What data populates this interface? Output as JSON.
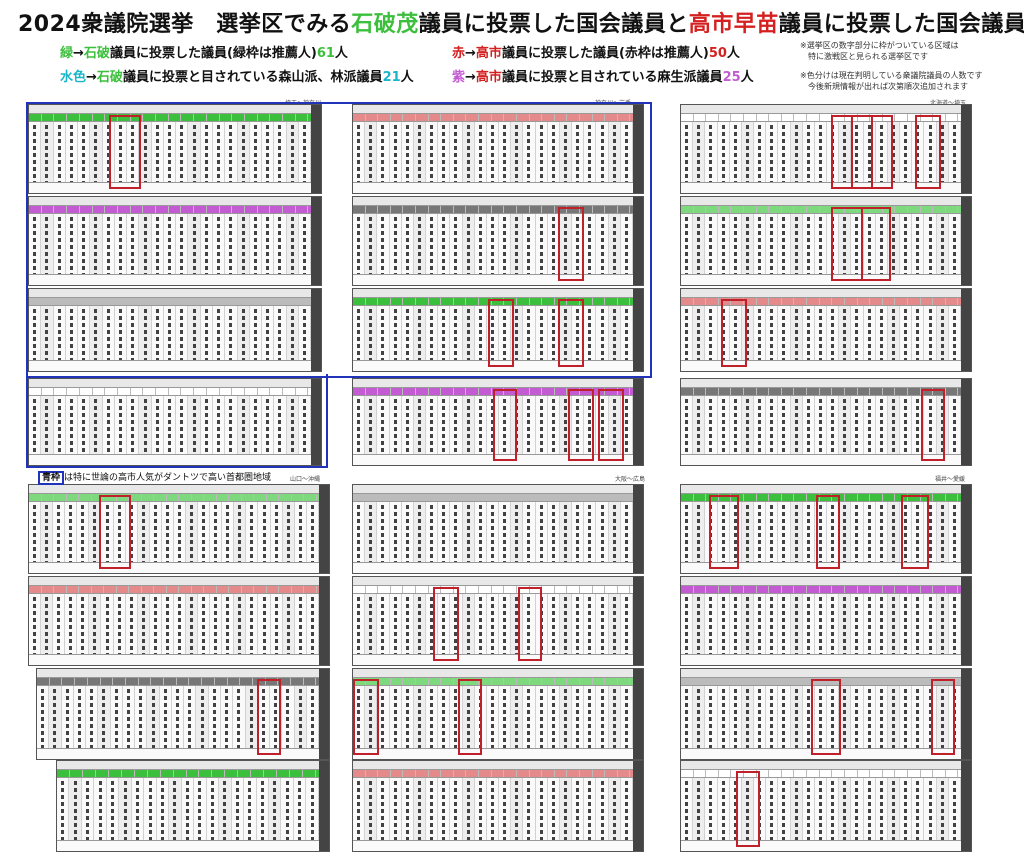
{
  "title": {
    "prefix": "2024衆議院選挙　選挙区でみる",
    "name1": "石破茂",
    "mid": "議員に投票した国会議員と",
    "name2": "高市早苗",
    "suffix": "議員に投票した国会議員"
  },
  "legend": {
    "green": {
      "color_word": "緑",
      "arrow": "→",
      "name": "石破",
      "text": "議員に投票した議員(緑枠は推薦人)",
      "count": "61",
      "unit": "人"
    },
    "red": {
      "color_word": "赤",
      "arrow": "→",
      "name": "高市",
      "text": "議員に投票した議員(赤枠は推薦人)",
      "count": "50",
      "unit": "人"
    },
    "cyan": {
      "color_word": "水色",
      "arrow": "→",
      "name": "石破",
      "text": "議員に投票と目されている森山派、林派議員",
      "count": "21",
      "unit": "人"
    },
    "purple": {
      "color_word": "紫",
      "arrow": "→",
      "name": "高市",
      "text": "議員に投票と目されている麻生派議員",
      "count": "25",
      "unit": "人"
    }
  },
  "notes": {
    "line1": "※選挙区の数字部分に枠がついている区域は",
    "line2": "　特に激戦区と見られる選挙区です",
    "line3": "※色分けは現在判明している衆議院議員の人数です",
    "line4": "　今後新規情報が出れば次第順次追加されます"
  },
  "tag": {
    "box": "青枠",
    "text": "は特に世論の高市人気がダントツで高い首都圏地域"
  },
  "regions": {
    "top_left": "埼玉～神奈川",
    "top_mid": "神奈川～岩手",
    "top_right": "北海道～埼玉",
    "mid_left": "山口～沖縄",
    "mid_mid": "大阪～広島",
    "mid_right": "福井～愛媛"
  },
  "colors": {
    "green": "#3cbf3c",
    "red": "#d42020",
    "cyan": "#19b6c9",
    "purple": "#c35bd3",
    "blue": "#2233bb"
  }
}
